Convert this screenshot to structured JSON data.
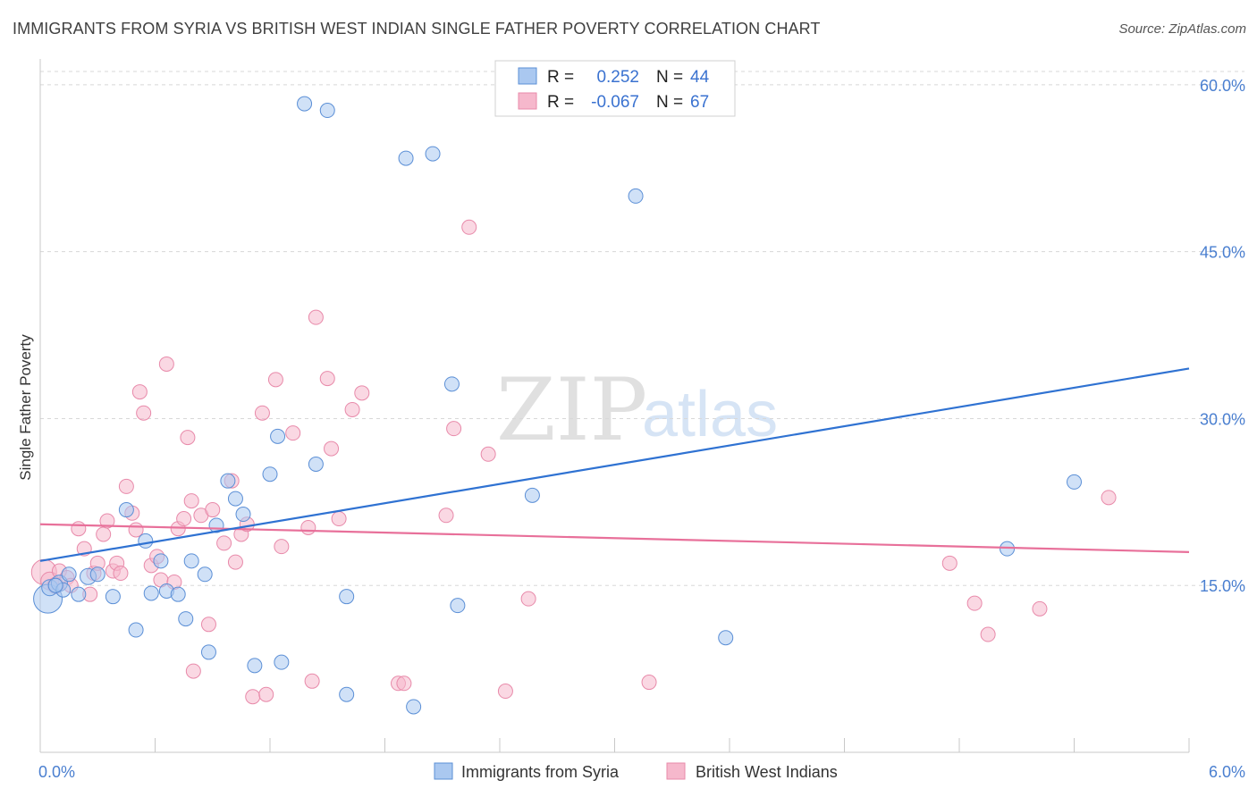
{
  "title": "IMMIGRANTS FROM SYRIA VS BRITISH WEST INDIAN SINGLE FATHER POVERTY CORRELATION CHART",
  "source": "Source: ZipAtlas.com",
  "watermark": {
    "zip": "ZIP",
    "atlas": "atlas"
  },
  "colors": {
    "blue_fill": "#aac8f0",
    "blue_stroke": "#5b8fd6",
    "blue_line": "#2f72d2",
    "pink_fill": "#f6b8cc",
    "pink_stroke": "#e88aaa",
    "pink_line": "#e8709a",
    "grid": "#d8d8d8",
    "tick_text": "#4a7fd0"
  },
  "legend": {
    "rows": [
      {
        "r_label": "R =",
        "r_value": "0.252",
        "n_label": "N =",
        "n_value": "44"
      },
      {
        "r_label": "R =",
        "r_value": "-0.067",
        "n_label": "N =",
        "n_value": "67"
      }
    ]
  },
  "chart_data": {
    "type": "scatter",
    "title": "IMMIGRANTS FROM SYRIA VS BRITISH WEST INDIAN SINGLE FATHER POVERTY CORRELATION CHART",
    "xlabel": "",
    "ylabel": "Single Father Poverty",
    "xlim": [
      0,
      6
    ],
    "ylim": [
      0,
      62
    ],
    "x_tick_labels": [
      "0.0%",
      "6.0%"
    ],
    "y_ticks": [
      15,
      30,
      45,
      60
    ],
    "y_tick_labels": [
      "15.0%",
      "30.0%",
      "45.0%",
      "60.0%"
    ],
    "grid": "horizontal dashed",
    "legend_position": "top-center",
    "series": [
      {
        "name": "Immigrants from Syria",
        "color": "blue",
        "r": 0.252,
        "n": 44,
        "trend": {
          "x": [
            0,
            6
          ],
          "y": [
            17.2,
            34.5
          ]
        },
        "points": [
          [
            0.04,
            13.8,
            16
          ],
          [
            0.05,
            14.8,
            9
          ],
          [
            0.1,
            15.2,
            9
          ],
          [
            0.12,
            14.6,
            8
          ],
          [
            0.15,
            16.0,
            8
          ],
          [
            0.2,
            14.2,
            8
          ],
          [
            0.25,
            15.8,
            9
          ],
          [
            0.3,
            16.0,
            8
          ],
          [
            0.38,
            14.0,
            8
          ],
          [
            0.45,
            21.8,
            8
          ],
          [
            0.5,
            11.0,
            8
          ],
          [
            0.55,
            19.0,
            8
          ],
          [
            0.58,
            14.3,
            8
          ],
          [
            0.63,
            17.2,
            8
          ],
          [
            0.66,
            14.5,
            8
          ],
          [
            0.72,
            14.2,
            8
          ],
          [
            0.76,
            12.0,
            8
          ],
          [
            0.79,
            17.2,
            8
          ],
          [
            0.86,
            16.0,
            8
          ],
          [
            0.88,
            9.0,
            8
          ],
          [
            0.92,
            20.4,
            8
          ],
          [
            0.98,
            24.4,
            8
          ],
          [
            1.02,
            22.8,
            8
          ],
          [
            1.06,
            21.4,
            8
          ],
          [
            1.12,
            7.8,
            8
          ],
          [
            1.2,
            25.0,
            8
          ],
          [
            1.24,
            28.4,
            8
          ],
          [
            1.26,
            8.1,
            8
          ],
          [
            1.38,
            58.3,
            8
          ],
          [
            1.44,
            25.9,
            8
          ],
          [
            1.5,
            57.7,
            8
          ],
          [
            1.6,
            5.2,
            8
          ],
          [
            1.6,
            14.0,
            8
          ],
          [
            1.91,
            53.4,
            8
          ],
          [
            1.95,
            4.1,
            8
          ],
          [
            2.05,
            53.8,
            8
          ],
          [
            2.15,
            33.1,
            8
          ],
          [
            2.18,
            13.2,
            8
          ],
          [
            2.57,
            23.1,
            8
          ],
          [
            3.11,
            50.0,
            8
          ],
          [
            3.58,
            10.3,
            8
          ],
          [
            5.05,
            18.3,
            8
          ],
          [
            5.4,
            24.3,
            8
          ],
          [
            0.08,
            15.0,
            8
          ]
        ]
      },
      {
        "name": "British West Indians",
        "color": "pink",
        "r": -0.067,
        "n": 67,
        "trend": {
          "x": [
            0,
            6
          ],
          "y": [
            20.5,
            18.0
          ]
        },
        "points": [
          [
            0.02,
            16.2,
            14
          ],
          [
            0.05,
            15.4,
            10
          ],
          [
            0.08,
            15.0,
            9
          ],
          [
            0.1,
            16.3,
            8
          ],
          [
            0.14,
            15.7,
            8
          ],
          [
            0.2,
            20.1,
            8
          ],
          [
            0.23,
            18.3,
            8
          ],
          [
            0.26,
            14.2,
            8
          ],
          [
            0.28,
            16.1,
            8
          ],
          [
            0.3,
            17.0,
            8
          ],
          [
            0.33,
            19.6,
            8
          ],
          [
            0.35,
            20.8,
            8
          ],
          [
            0.38,
            16.3,
            8
          ],
          [
            0.4,
            17.0,
            8
          ],
          [
            0.42,
            16.1,
            8
          ],
          [
            0.45,
            23.9,
            8
          ],
          [
            0.48,
            21.5,
            8
          ],
          [
            0.5,
            20.0,
            8
          ],
          [
            0.52,
            32.4,
            8
          ],
          [
            0.54,
            30.5,
            8
          ],
          [
            0.58,
            16.8,
            8
          ],
          [
            0.61,
            17.6,
            8
          ],
          [
            0.63,
            15.5,
            8
          ],
          [
            0.66,
            34.9,
            8
          ],
          [
            0.7,
            15.3,
            8
          ],
          [
            0.72,
            20.1,
            8
          ],
          [
            0.75,
            21.0,
            8
          ],
          [
            0.77,
            28.3,
            8
          ],
          [
            0.79,
            22.6,
            8
          ],
          [
            0.8,
            7.3,
            8
          ],
          [
            0.84,
            21.3,
            8
          ],
          [
            0.88,
            11.5,
            8
          ],
          [
            0.9,
            21.8,
            8
          ],
          [
            0.96,
            18.8,
            8
          ],
          [
            1.0,
            24.4,
            8
          ],
          [
            1.02,
            17.1,
            8
          ],
          [
            1.05,
            19.6,
            8
          ],
          [
            1.08,
            20.5,
            8
          ],
          [
            1.11,
            5.0,
            8
          ],
          [
            1.16,
            30.5,
            8
          ],
          [
            1.18,
            5.2,
            8
          ],
          [
            1.23,
            33.5,
            8
          ],
          [
            1.26,
            18.5,
            8
          ],
          [
            1.32,
            28.7,
            8
          ],
          [
            1.4,
            20.2,
            8
          ],
          [
            1.42,
            6.4,
            8
          ],
          [
            1.44,
            39.1,
            8
          ],
          [
            1.5,
            33.6,
            8
          ],
          [
            1.52,
            27.3,
            8
          ],
          [
            1.56,
            21.0,
            8
          ],
          [
            1.63,
            30.8,
            8
          ],
          [
            1.68,
            32.3,
            8
          ],
          [
            1.87,
            6.2,
            8
          ],
          [
            2.12,
            21.3,
            8
          ],
          [
            2.16,
            29.1,
            8
          ],
          [
            2.24,
            47.2,
            8
          ],
          [
            2.34,
            26.8,
            8
          ],
          [
            2.43,
            5.5,
            8
          ],
          [
            2.55,
            13.8,
            8
          ],
          [
            3.18,
            6.3,
            8
          ],
          [
            4.75,
            17.0,
            8
          ],
          [
            4.88,
            13.4,
            8
          ],
          [
            4.95,
            10.6,
            8
          ],
          [
            5.22,
            12.9,
            8
          ],
          [
            5.58,
            22.9,
            8
          ],
          [
            1.9,
            6.2,
            8
          ],
          [
            0.16,
            15.0,
            8
          ]
        ]
      }
    ]
  }
}
